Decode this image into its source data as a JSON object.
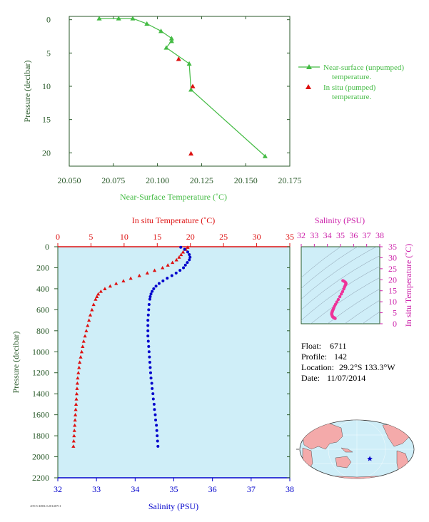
{
  "colors": {
    "green": "#44bb44",
    "dark_green": "#2a5a2a",
    "red": "#dd1111",
    "blue": "#0000cc",
    "magenta": "#cc22aa",
    "pink": "#ee3399",
    "plot_bg": "#cfeef8",
    "land": "#f4aaaa",
    "ocean": "#cfeef8",
    "float_marker": "#0000cc"
  },
  "info": {
    "float_label": "Float:",
    "float_value": "6711",
    "profile_label": "Profile:",
    "profile_value": "142",
    "location_label": "Location:",
    "location_value": "29.2°S  133.3°W",
    "date_label": "Date:",
    "date_value": "11/07/2014"
  },
  "footer_code": "ATC5-4803.0.20140711",
  "chart_data": [
    {
      "id": "near-surface",
      "type": "scatter",
      "xlabel": "Near-Surface Temperature (˚C)",
      "ylabel": "Pressure (decibar)",
      "xlim": [
        20.05,
        20.175
      ],
      "ylim": [
        22,
        -0.5
      ],
      "xticks": [
        "20.050",
        "20.075",
        "20.100",
        "20.125",
        "20.150",
        "20.175"
      ],
      "xtick_values": [
        20.05,
        20.075,
        20.1,
        20.125,
        20.15,
        20.175
      ],
      "yticks": [
        0,
        5,
        10,
        15,
        20
      ],
      "legend": [
        {
          "label": "Near-surface (unpumped)",
          "label2": "temperature.",
          "color": "#44bb44"
        },
        {
          "label": "In situ (pumped)",
          "label2": "temperature.",
          "color": "#dd1111"
        }
      ],
      "series": [
        {
          "name": "Near-surface (unpumped) temperature.",
          "style": "line-triangle",
          "x": [
            20.067,
            20.078,
            20.086,
            20.094,
            20.102,
            20.108,
            20.108,
            20.105,
            20.118,
            20.119,
            20.161
          ],
          "y": [
            -0.2,
            -0.2,
            -0.2,
            0.6,
            1.7,
            2.8,
            3.2,
            4.2,
            6.6,
            10.5,
            20.5
          ]
        },
        {
          "name": "In situ (pumped) temperature.",
          "style": "triangle",
          "x": [
            20.112,
            20.12,
            20.119
          ],
          "y": [
            5.9,
            10.0,
            20.1
          ]
        }
      ]
    },
    {
      "id": "profile",
      "type": "scatter",
      "top_label": "In situ Temperature (˚C)",
      "bottom_label": "Salinity (PSU)",
      "ylabel": "Pressure (decibar)",
      "temp_lim": [
        0,
        35
      ],
      "temp_ticks": [
        0,
        5,
        10,
        15,
        20,
        25,
        30,
        35
      ],
      "sal_lim": [
        32,
        38
      ],
      "sal_ticks": [
        32,
        33,
        34,
        35,
        36,
        37,
        38
      ],
      "ylim": [
        2200,
        0
      ],
      "yticks": [
        0,
        200,
        400,
        600,
        800,
        1000,
        1200,
        1400,
        1600,
        1800,
        2000,
        2200
      ],
      "series": [
        {
          "name": "In situ Temperature",
          "axis": "temperature",
          "pressure": [
            5,
            25,
            50,
            75,
            100,
            125,
            150,
            175,
            200,
            225,
            250,
            275,
            300,
            325,
            350,
            375,
            400,
            425,
            450,
            475,
            500,
            550,
            600,
            650,
            700,
            750,
            800,
            850,
            900,
            950,
            1000,
            1050,
            1100,
            1150,
            1200,
            1250,
            1300,
            1350,
            1400,
            1450,
            1500,
            1550,
            1600,
            1650,
            1700,
            1750,
            1800,
            1850,
            1900
          ],
          "values": [
            19.6,
            19.3,
            18.9,
            18.6,
            18.3,
            17.9,
            17.3,
            16.6,
            15.8,
            14.6,
            13.5,
            12.3,
            11.0,
            9.9,
            8.8,
            7.9,
            7.1,
            6.5,
            6.1,
            5.9,
            5.7,
            5.4,
            5.15,
            4.9,
            4.7,
            4.5,
            4.3,
            4.1,
            3.9,
            3.75,
            3.6,
            3.45,
            3.3,
            3.2,
            3.1,
            3.0,
            2.95,
            2.9,
            2.85,
            2.8,
            2.75,
            2.7,
            2.65,
            2.6,
            2.55,
            2.5,
            2.45,
            2.4,
            2.35
          ]
        },
        {
          "name": "Salinity",
          "axis": "salinity",
          "pressure": [
            5,
            25,
            50,
            75,
            100,
            125,
            150,
            175,
            200,
            225,
            250,
            275,
            300,
            325,
            350,
            375,
            400,
            425,
            450,
            475,
            500,
            550,
            600,
            650,
            700,
            750,
            800,
            850,
            900,
            950,
            1000,
            1050,
            1100,
            1150,
            1200,
            1250,
            1300,
            1350,
            1400,
            1450,
            1500,
            1550,
            1600,
            1650,
            1700,
            1750,
            1800,
            1850,
            1900
          ],
          "values": [
            35.18,
            35.28,
            35.36,
            35.4,
            35.42,
            35.4,
            35.35,
            35.3,
            35.25,
            35.16,
            35.06,
            34.95,
            34.83,
            34.72,
            34.62,
            34.54,
            34.48,
            34.44,
            34.41,
            34.39,
            34.38,
            34.36,
            34.35,
            34.34,
            34.33,
            34.33,
            34.33,
            34.33,
            34.34,
            34.35,
            34.36,
            34.37,
            34.38,
            34.39,
            34.4,
            34.41,
            34.43,
            34.44,
            34.46,
            34.47,
            34.49,
            34.5,
            34.52,
            34.53,
            34.55,
            34.56,
            34.57,
            34.58,
            34.59
          ]
        }
      ]
    },
    {
      "id": "ts-diagram",
      "type": "scatter",
      "top_label": "Salinity (PSU)",
      "right_label": "In situ Temperature (˚C)",
      "sal_lim": [
        32,
        38
      ],
      "sal_ticks": [
        32,
        33,
        34,
        35,
        36,
        37,
        38
      ],
      "temp_lim": [
        0,
        35
      ],
      "temp_ticks": [
        0,
        5,
        10,
        15,
        20,
        25,
        30,
        35
      ],
      "series": [
        {
          "name": "T-S",
          "salinity": [
            35.18,
            35.28,
            35.36,
            35.4,
            35.42,
            35.4,
            35.35,
            35.3,
            35.25,
            35.16,
            35.06,
            34.95,
            34.83,
            34.72,
            34.62,
            34.54,
            34.48,
            34.44,
            34.41,
            34.39,
            34.38,
            34.36,
            34.35,
            34.34,
            34.33,
            34.33,
            34.33,
            34.34,
            34.36,
            34.38,
            34.4,
            34.43,
            34.46,
            34.49,
            34.52,
            34.55,
            34.57,
            34.59
          ],
          "temperature": [
            19.6,
            19.3,
            18.9,
            18.6,
            18.3,
            17.9,
            17.3,
            16.6,
            15.8,
            14.6,
            13.5,
            12.3,
            11.0,
            9.9,
            8.8,
            7.9,
            7.1,
            6.5,
            6.1,
            5.9,
            5.7,
            5.4,
            5.15,
            4.9,
            4.7,
            4.5,
            4.3,
            4.1,
            3.75,
            3.45,
            3.2,
            3.0,
            2.9,
            2.8,
            2.7,
            2.6,
            2.5,
            2.4
          ]
        }
      ]
    },
    {
      "id": "location-map",
      "type": "map",
      "marker": {
        "lat": -29.2,
        "lon": -133.3
      }
    }
  ]
}
